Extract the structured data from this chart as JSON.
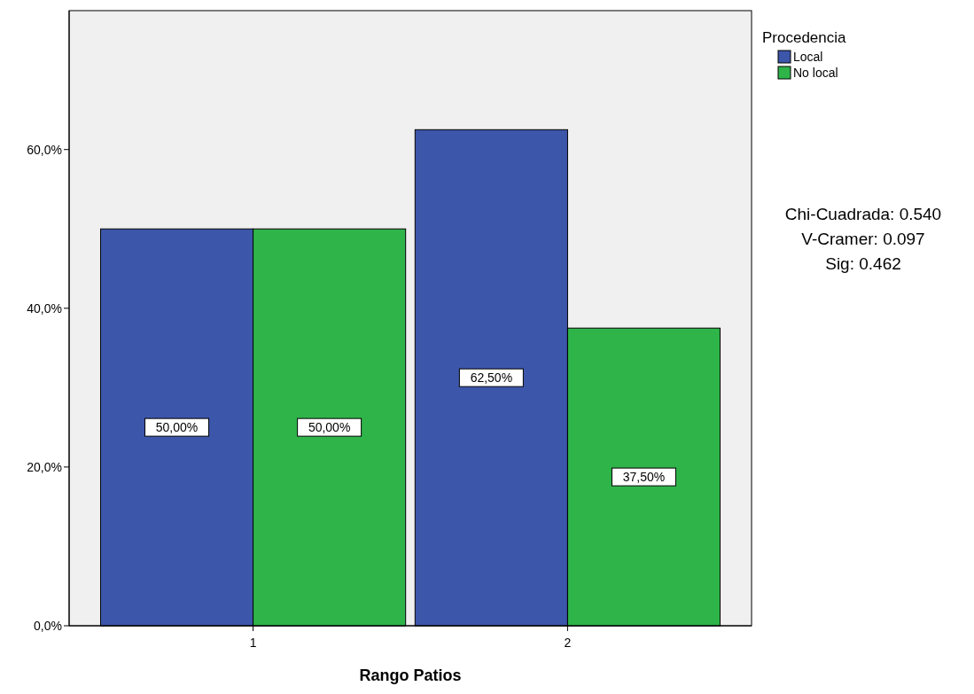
{
  "chart_data": {
    "type": "bar",
    "xlabel": "Rango Patios",
    "legend_title": "Procedencia",
    "legend": "top right",
    "categories": [
      "1",
      "2"
    ],
    "series": [
      {
        "name": "Local",
        "color": "#3c56aa",
        "values": [
          50,
          62.5
        ],
        "value_labels": [
          "50,00%",
          "62,50%"
        ]
      },
      {
        "name": "No local",
        "color": "#2fb44a",
        "values": [
          50,
          37.5
        ],
        "value_labels": [
          "50,00%",
          "37,50%"
        ]
      }
    ],
    "ylim": [
      0,
      77.5
    ],
    "yticks": [
      {
        "value": 0,
        "label": "0,0%"
      },
      {
        "value": 20,
        "label": "20,0%"
      },
      {
        "value": 40,
        "label": "40,0%"
      },
      {
        "value": 60,
        "label": "60,0%"
      }
    ],
    "annotations": [
      "Chi-Cuadrada: 0.540",
      "V-Cramer: 0.097",
      "Sig: 0.462"
    ]
  }
}
